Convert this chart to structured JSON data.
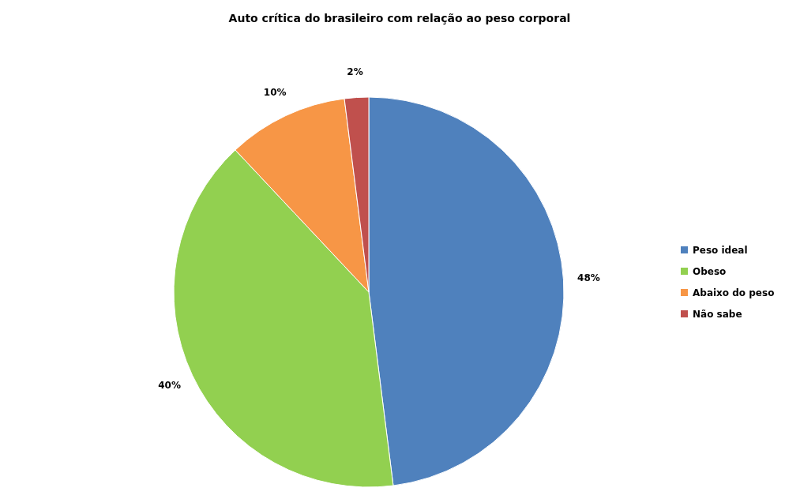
{
  "chart_data": {
    "type": "pie",
    "title": "Auto crítica do brasileiro com relação ao peso corporal",
    "categories": [
      "Peso ideal",
      "Obeso",
      "Abaixo do peso",
      "Não sabe"
    ],
    "values": [
      48,
      40,
      10,
      2
    ],
    "colors": [
      "#4f81bd",
      "#92d050",
      "#f79646",
      "#c0504d"
    ],
    "value_labels": [
      "48%",
      "40%",
      "10%",
      "2%"
    ],
    "legend": "right"
  }
}
